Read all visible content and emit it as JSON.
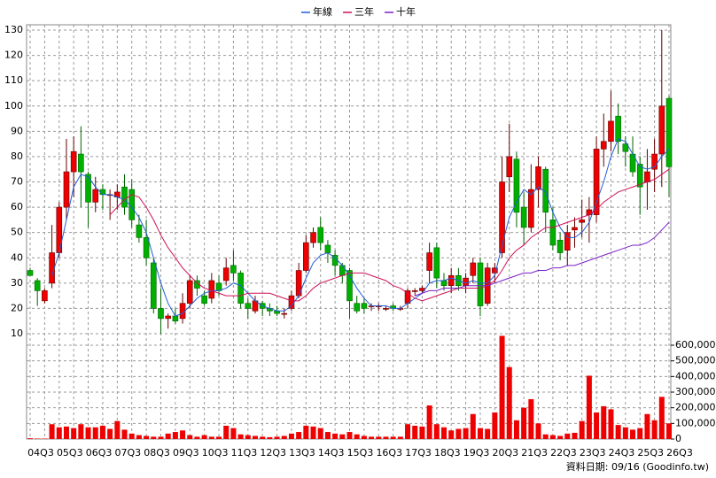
{
  "chart_data": {
    "type": "candlestick",
    "categories": [
      "04Q3",
      null,
      null,
      null,
      "05Q3",
      null,
      null,
      null,
      "06Q3",
      null,
      null,
      null,
      "07Q3",
      null,
      null,
      null,
      "08Q3",
      null,
      null,
      null,
      "09Q3",
      null,
      null,
      null,
      "10Q3",
      null,
      null,
      null,
      "11Q3",
      null,
      null,
      null,
      "12Q3",
      null,
      null,
      null,
      "13Q3",
      null,
      null,
      null,
      "14Q3",
      null,
      null,
      null,
      "15Q3",
      null,
      null,
      null,
      "16Q3",
      null,
      null,
      null,
      "17Q3",
      null,
      null,
      null,
      "18Q3",
      null,
      null,
      null,
      "19Q3",
      null,
      null,
      null,
      "20Q3",
      null,
      null,
      null,
      "21Q3",
      null,
      null,
      null,
      "22Q3",
      null,
      null,
      null,
      "23Q3",
      null,
      null,
      null,
      "24Q3",
      null,
      null,
      null,
      "25Q3",
      null,
      null,
      null,
      "26Q3"
    ],
    "open": [
      35,
      31,
      23,
      30,
      42,
      60,
      74,
      81,
      73,
      62,
      67,
      65,
      64,
      68,
      67,
      53,
      48,
      38,
      20,
      16,
      17,
      16,
      22,
      31,
      25,
      24,
      30,
      31,
      37,
      34,
      22,
      19,
      22,
      20,
      19,
      18,
      20,
      25,
      35,
      46,
      52,
      45,
      41,
      37,
      35,
      22,
      22,
      21,
      21,
      20,
      21,
      20,
      22,
      27,
      27,
      35,
      44,
      31,
      29,
      33,
      29,
      33,
      38,
      22,
      34,
      42,
      72,
      79,
      60,
      52,
      67,
      75,
      55,
      47,
      43,
      51,
      54,
      57,
      57,
      83,
      86,
      96,
      85,
      81,
      77,
      70,
      75,
      81,
      103
    ],
    "high": [
      36,
      32,
      28,
      53,
      62,
      87,
      88,
      92,
      74,
      72,
      69,
      67,
      69,
      73,
      71,
      57,
      55,
      40,
      28,
      18,
      20,
      26,
      33,
      33,
      27,
      34,
      33,
      40,
      43,
      35,
      24,
      25,
      23,
      22,
      21,
      20,
      27,
      38,
      49,
      52,
      56,
      47,
      43,
      38,
      36,
      25,
      24,
      22,
      22,
      21,
      22,
      21,
      28,
      28,
      29,
      46,
      46,
      34,
      36,
      36,
      34,
      40,
      40,
      38,
      38,
      80,
      93,
      82,
      66,
      77,
      80,
      76,
      60,
      50,
      53,
      56,
      63,
      64,
      88,
      97,
      106,
      101,
      88,
      88,
      80,
      83,
      87,
      130,
      104
    ],
    "low": [
      33,
      21,
      22,
      28,
      40,
      55,
      64,
      60,
      52,
      58,
      59,
      55,
      59,
      57,
      52,
      46,
      37,
      18,
      10,
      12,
      14,
      14,
      20,
      25,
      21,
      22,
      25,
      29,
      31,
      20,
      16,
      18,
      17,
      17,
      17,
      16,
      19,
      24,
      34,
      44,
      43,
      38,
      33,
      30,
      16,
      18,
      18,
      19,
      19,
      19,
      19,
      19,
      20,
      25,
      26,
      30,
      28,
      27,
      26,
      27,
      26,
      30,
      17,
      21,
      30,
      40,
      66,
      52,
      45,
      50,
      60,
      50,
      43,
      39,
      37,
      44,
      48,
      46,
      54,
      76,
      82,
      81,
      76,
      72,
      57,
      59,
      66,
      68,
      64
    ],
    "close": [
      33,
      27,
      27,
      42,
      60,
      74,
      82,
      74,
      62,
      67,
      65,
      65,
      66,
      60,
      55,
      48,
      40,
      20,
      16,
      17,
      15,
      22,
      31,
      28,
      22,
      31,
      27,
      36,
      34,
      22,
      20,
      23,
      20,
      19,
      18,
      18,
      25,
      35,
      46,
      50,
      46,
      42,
      37,
      33,
      23,
      19,
      20,
      21,
      21,
      20,
      20,
      20,
      27,
      27,
      28,
      42,
      32,
      29,
      33,
      29,
      32,
      38,
      21,
      36,
      36,
      70,
      80,
      58,
      52,
      67,
      76,
      58,
      45,
      42,
      50,
      52,
      55,
      59,
      83,
      86,
      94,
      86,
      82,
      74,
      68,
      74,
      81,
      100,
      76
    ],
    "up_color": "#ee0000",
    "down_color": "#00b000",
    "series": [
      {
        "name": "年線",
        "color": "#1f5fd6",
        "values": [
          null,
          null,
          null,
          33,
          42,
          55,
          68,
          73,
          72,
          68,
          65,
          65,
          64,
          63,
          60,
          56,
          50,
          40,
          30,
          22,
          17,
          18,
          21,
          24,
          26,
          27,
          27,
          28,
          30,
          29,
          26,
          23,
          21,
          20,
          19,
          19,
          21,
          25,
          32,
          38,
          41,
          42,
          40,
          37,
          33,
          28,
          24,
          21,
          21,
          21,
          20,
          20,
          22,
          24,
          26,
          30,
          31,
          31,
          32,
          31,
          30,
          31,
          30,
          30,
          33,
          45,
          56,
          62,
          67,
          65,
          68,
          66,
          58,
          52,
          48,
          48,
          50,
          54,
          62,
          70,
          80,
          87,
          86,
          81,
          76,
          75,
          76,
          80,
          83
        ]
      },
      {
        "name": "三年",
        "color": "#d0105a",
        "values": [
          null,
          null,
          null,
          null,
          null,
          null,
          null,
          null,
          null,
          null,
          null,
          57,
          60,
          63,
          65,
          64,
          60,
          55,
          49,
          44,
          40,
          36,
          33,
          30,
          28,
          27,
          26,
          25,
          25,
          25,
          26,
          26,
          26,
          26,
          25,
          24,
          23,
          23,
          25,
          28,
          30,
          31,
          32,
          33,
          34,
          34,
          34,
          33,
          32,
          31,
          29,
          28,
          26,
          24,
          23,
          24,
          25,
          26,
          27,
          28,
          28,
          28,
          28,
          29,
          31,
          35,
          40,
          43,
          45,
          48,
          50,
          52,
          52,
          53,
          54,
          55,
          56,
          57,
          59,
          62,
          64,
          66,
          67,
          68,
          69,
          70,
          71,
          73,
          75
        ]
      },
      {
        "name": "十年",
        "color": "#7a1fc8",
        "values": [
          null,
          null,
          null,
          null,
          null,
          null,
          null,
          null,
          null,
          null,
          null,
          null,
          null,
          null,
          null,
          null,
          null,
          null,
          null,
          null,
          null,
          null,
          null,
          null,
          null,
          null,
          null,
          null,
          null,
          null,
          null,
          null,
          null,
          null,
          null,
          null,
          null,
          null,
          null,
          null,
          null,
          null,
          null,
          null,
          null,
          null,
          null,
          null,
          null,
          null,
          null,
          null,
          null,
          25,
          26,
          27,
          27,
          28,
          28,
          28,
          29,
          29,
          29,
          29,
          30,
          31,
          32,
          33,
          34,
          34,
          35,
          35,
          36,
          36,
          37,
          37,
          38,
          39,
          40,
          41,
          42,
          43,
          44,
          45,
          45,
          46,
          48,
          51,
          54
        ]
      }
    ],
    "volume": {
      "color": "#ee0000",
      "values": [
        5000,
        3000,
        3000,
        95000,
        75000,
        80000,
        70000,
        95000,
        75000,
        75000,
        85000,
        65000,
        115000,
        60000,
        35000,
        25000,
        20000,
        15000,
        15000,
        35000,
        45000,
        55000,
        25000,
        15000,
        25000,
        15000,
        15000,
        85000,
        70000,
        30000,
        25000,
        20000,
        15000,
        12000,
        15000,
        20000,
        35000,
        45000,
        85000,
        80000,
        70000,
        45000,
        35000,
        30000,
        45000,
        30000,
        20000,
        15000,
        15000,
        15000,
        15000,
        15000,
        95000,
        85000,
        80000,
        215000,
        95000,
        75000,
        55000,
        65000,
        70000,
        160000,
        70000,
        65000,
        170000,
        660000,
        460000,
        120000,
        200000,
        255000,
        100000,
        30000,
        25000,
        20000,
        35000,
        40000,
        115000,
        405000,
        170000,
        210000,
        190000,
        90000,
        75000,
        60000,
        70000,
        160000,
        120000,
        270000,
        100000
      ]
    },
    "ylim": [
      10,
      130
    ],
    "yticks": [
      10,
      20,
      30,
      40,
      50,
      60,
      70,
      80,
      90,
      100,
      110,
      120,
      130
    ],
    "y2lim": [
      0,
      600000
    ],
    "y2ticks": [
      0,
      {
        "value": 100000,
        "label": "100,000"
      },
      {
        "value": 200000,
        "label": "200,000"
      },
      {
        "value": 300000,
        "label": "300,000"
      },
      {
        "value": 400000,
        "label": "400,000"
      },
      {
        "value": 500000,
        "label": "500,000"
      },
      {
        "value": 600000,
        "label": "600,000"
      }
    ],
    "grid": true,
    "legend": "top",
    "footer": "資料日期: 09/16 (Goodinfo.tw)"
  }
}
